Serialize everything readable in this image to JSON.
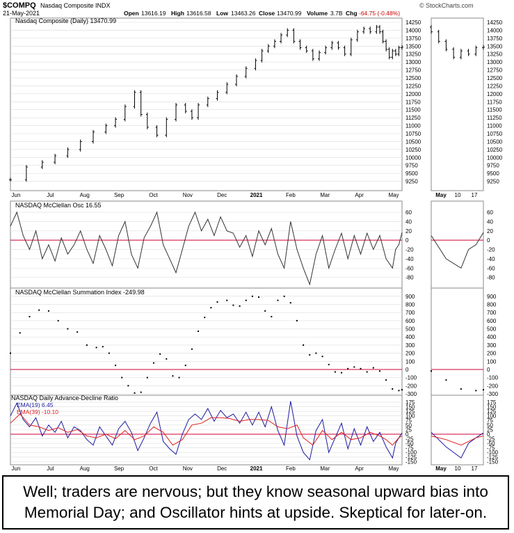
{
  "header": {
    "symbol": "$COMPQ",
    "name": "Nasdaq Composite INDX",
    "date": "21-May-2021",
    "open_label": "Open",
    "open": "13616.19",
    "high_label": "High",
    "high": "13616.58",
    "low_label": "Low",
    "low": "13463.26",
    "close_label": "Close",
    "close": "13470.99",
    "volume_label": "Volume",
    "volume": "3.7B",
    "chg_label": "Chg",
    "chg": "-64.75 (-0.48%)",
    "brand": "© StockCharts.com"
  },
  "colors": {
    "price": "#000000",
    "zero_line": "#cc0033",
    "ema19": "#1a1aa0",
    "ema39": "#e02020",
    "grid": "#dcdcdc",
    "panel_border": "#888888"
  },
  "x_axis": {
    "labels": [
      "Jun",
      "Jul",
      "Aug",
      "Sep",
      "Oct",
      "Nov",
      "Dec",
      "2021",
      "Feb",
      "Mar",
      "Apr",
      "May"
    ],
    "zoom_labels": [
      "May",
      "10",
      "17"
    ]
  },
  "caption": "Well; traders are nervous; but they know seasonal upward bias into Memorial Day; and Oscillator hints at upside. Skeptical for later-on.",
  "chart_data": [
    {
      "type": "ohlc",
      "title": "Nasdaq Composite (Daily) 13470.99",
      "ylim": [
        9000,
        14250
      ],
      "yticks": [
        9250,
        9500,
        9750,
        10000,
        10250,
        10500,
        10750,
        11000,
        11250,
        11500,
        11750,
        12000,
        12250,
        12500,
        12750,
        13000,
        13250,
        13500,
        13750,
        14000,
        14250
      ],
      "points": [
        [
          0,
          9300
        ],
        [
          10,
          9700
        ],
        [
          20,
          9850
        ],
        [
          28,
          10050
        ],
        [
          36,
          10250
        ],
        [
          44,
          10500
        ],
        [
          52,
          10800
        ],
        [
          60,
          11000
        ],
        [
          66,
          11200
        ],
        [
          72,
          11600
        ],
        [
          78,
          12050
        ],
        [
          82,
          11350
        ],
        [
          86,
          10950
        ],
        [
          92,
          10700
        ],
        [
          98,
          11200
        ],
        [
          104,
          11650
        ],
        [
          110,
          11450
        ],
        [
          114,
          11250
        ],
        [
          118,
          11650
        ],
        [
          124,
          11850
        ],
        [
          130,
          12050
        ],
        [
          136,
          12300
        ],
        [
          142,
          12550
        ],
        [
          148,
          12800
        ],
        [
          154,
          13050
        ],
        [
          158,
          13350
        ],
        [
          162,
          13500
        ],
        [
          166,
          13650
        ],
        [
          170,
          13850
        ],
        [
          174,
          14000
        ],
        [
          178,
          13650
        ],
        [
          182,
          13450
        ],
        [
          186,
          13350
        ],
        [
          190,
          13100
        ],
        [
          194,
          13300
        ],
        [
          198,
          13450
        ],
        [
          202,
          13600
        ],
        [
          206,
          13450
        ],
        [
          210,
          13250
        ],
        [
          214,
          13700
        ],
        [
          218,
          13950
        ],
        [
          222,
          14050
        ],
        [
          226,
          13950
        ],
        [
          230,
          14100
        ],
        [
          232,
          13950
        ],
        [
          234,
          13650
        ],
        [
          236,
          13400
        ],
        [
          238,
          13150
        ],
        [
          240,
          13350
        ],
        [
          242,
          13250
        ],
        [
          244,
          13450
        ],
        [
          246,
          13470
        ]
      ]
    },
    {
      "type": "line",
      "title": "NASDAQ McClellan Osc 16.55",
      "ylim": [
        -100,
        75
      ],
      "yticks": [
        -80,
        -60,
        -40,
        -20,
        0,
        20,
        40,
        60
      ],
      "points": [
        [
          0,
          30
        ],
        [
          4,
          60
        ],
        [
          8,
          10
        ],
        [
          12,
          -20
        ],
        [
          16,
          20
        ],
        [
          20,
          -40
        ],
        [
          24,
          -10
        ],
        [
          28,
          -45
        ],
        [
          32,
          5
        ],
        [
          36,
          -30
        ],
        [
          40,
          -10
        ],
        [
          44,
          20
        ],
        [
          48,
          -20
        ],
        [
          52,
          -50
        ],
        [
          56,
          10
        ],
        [
          60,
          -20
        ],
        [
          64,
          -55
        ],
        [
          68,
          10
        ],
        [
          72,
          40
        ],
        [
          76,
          -30
        ],
        [
          80,
          -60
        ],
        [
          84,
          5
        ],
        [
          88,
          30
        ],
        [
          92,
          60
        ],
        [
          96,
          -10
        ],
        [
          100,
          -40
        ],
        [
          104,
          -70
        ],
        [
          108,
          -20
        ],
        [
          112,
          30
        ],
        [
          116,
          60
        ],
        [
          120,
          20
        ],
        [
          124,
          45
        ],
        [
          128,
          10
        ],
        [
          132,
          50
        ],
        [
          136,
          20
        ],
        [
          140,
          15
        ],
        [
          144,
          -15
        ],
        [
          148,
          10
        ],
        [
          152,
          -35
        ],
        [
          156,
          20
        ],
        [
          160,
          -10
        ],
        [
          164,
          25
        ],
        [
          168,
          -30
        ],
        [
          172,
          -60
        ],
        [
          176,
          40
        ],
        [
          180,
          -20
        ],
        [
          184,
          -60
        ],
        [
          188,
          -95
        ],
        [
          192,
          -30
        ],
        [
          196,
          10
        ],
        [
          200,
          -60
        ],
        [
          204,
          -20
        ],
        [
          208,
          15
        ],
        [
          212,
          -40
        ],
        [
          216,
          10
        ],
        [
          220,
          -30
        ],
        [
          224,
          15
        ],
        [
          228,
          -20
        ],
        [
          232,
          10
        ],
        [
          236,
          -40
        ],
        [
          240,
          -60
        ],
        [
          242,
          -20
        ],
        [
          244,
          -10
        ],
        [
          246,
          16.55
        ]
      ]
    },
    {
      "type": "scatter",
      "title": "NASDAQ McClellan Summation Index -249.98",
      "ylim": [
        -300,
        950
      ],
      "yticks": [
        -300,
        -200,
        -100,
        0,
        100,
        200,
        300,
        400,
        500,
        600,
        700,
        800,
        900
      ],
      "points": [
        [
          0,
          200
        ],
        [
          6,
          450
        ],
        [
          12,
          650
        ],
        [
          18,
          730
        ],
        [
          24,
          720
        ],
        [
          30,
          600
        ],
        [
          36,
          500
        ],
        [
          42,
          460
        ],
        [
          48,
          300
        ],
        [
          54,
          270
        ],
        [
          58,
          280
        ],
        [
          62,
          200
        ],
        [
          66,
          50
        ],
        [
          70,
          -100
        ],
        [
          74,
          -200
        ],
        [
          78,
          -290
        ],
        [
          82,
          -280
        ],
        [
          86,
          -100
        ],
        [
          90,
          80
        ],
        [
          94,
          190
        ],
        [
          98,
          130
        ],
        [
          102,
          -80
        ],
        [
          106,
          -100
        ],
        [
          110,
          50
        ],
        [
          114,
          250
        ],
        [
          118,
          470
        ],
        [
          122,
          640
        ],
        [
          126,
          760
        ],
        [
          130,
          830
        ],
        [
          136,
          850
        ],
        [
          140,
          790
        ],
        [
          144,
          780
        ],
        [
          148,
          850
        ],
        [
          152,
          900
        ],
        [
          156,
          890
        ],
        [
          160,
          720
        ],
        [
          164,
          650
        ],
        [
          168,
          850
        ],
        [
          172,
          900
        ],
        [
          176,
          820
        ],
        [
          180,
          600
        ],
        [
          184,
          300
        ],
        [
          188,
          180
        ],
        [
          192,
          200
        ],
        [
          196,
          160
        ],
        [
          200,
          60
        ],
        [
          204,
          -30
        ],
        [
          208,
          -40
        ],
        [
          212,
          10
        ],
        [
          216,
          30
        ],
        [
          220,
          10
        ],
        [
          224,
          -30
        ],
        [
          228,
          20
        ],
        [
          232,
          -20
        ],
        [
          236,
          -130
        ],
        [
          240,
          -240
        ],
        [
          244,
          -260
        ],
        [
          246,
          -249.98
        ]
      ]
    },
    {
      "type": "line",
      "title": "NASDAQ Daily Advance-Decline Ratio",
      "ylim": [
        -160,
        190
      ],
      "yticks": [
        -150,
        -125,
        -100,
        -75,
        -50,
        -25,
        0,
        25,
        50,
        75,
        100,
        125,
        150,
        175
      ],
      "series": [
        {
          "name": "EMA(19) 6.45",
          "points": [
            [
              0,
              100
            ],
            [
              4,
              170
            ],
            [
              8,
              80
            ],
            [
              12,
              40
            ],
            [
              16,
              90
            ],
            [
              20,
              -10
            ],
            [
              24,
              50
            ],
            [
              28,
              10
            ],
            [
              32,
              70
            ],
            [
              36,
              -20
            ],
            [
              40,
              40
            ],
            [
              44,
              20
            ],
            [
              48,
              -30
            ],
            [
              52,
              -60
            ],
            [
              56,
              40
            ],
            [
              60,
              -10
            ],
            [
              64,
              -60
            ],
            [
              68,
              30
            ],
            [
              72,
              70
            ],
            [
              76,
              10
            ],
            [
              80,
              -90
            ],
            [
              84,
              -20
            ],
            [
              88,
              60
            ],
            [
              92,
              120
            ],
            [
              96,
              -40
            ],
            [
              100,
              -80
            ],
            [
              104,
              -110
            ],
            [
              108,
              0
            ],
            [
              112,
              80
            ],
            [
              116,
              110
            ],
            [
              120,
              80
            ],
            [
              124,
              140
            ],
            [
              128,
              70
            ],
            [
              132,
              130
            ],
            [
              136,
              90
            ],
            [
              140,
              110
            ],
            [
              144,
              60
            ],
            [
              148,
              120
            ],
            [
              152,
              50
            ],
            [
              156,
              120
            ],
            [
              160,
              40
            ],
            [
              164,
              150
            ],
            [
              168,
              20
            ],
            [
              172,
              -60
            ],
            [
              176,
              180
            ],
            [
              180,
              -10
            ],
            [
              184,
              -100
            ],
            [
              188,
              -140
            ],
            [
              192,
              20
            ],
            [
              196,
              80
            ],
            [
              200,
              -100
            ],
            [
              204,
              -20
            ],
            [
              208,
              60
            ],
            [
              212,
              -80
            ],
            [
              216,
              30
            ],
            [
              220,
              -60
            ],
            [
              224,
              40
            ],
            [
              228,
              -40
            ],
            [
              232,
              10
            ],
            [
              236,
              -70
            ],
            [
              240,
              -130
            ],
            [
              242,
              -50
            ],
            [
              244,
              -20
            ],
            [
              246,
              6.45
            ]
          ]
        },
        {
          "name": "EMA(39) -10.10",
          "points": [
            [
              0,
              60
            ],
            [
              6,
              110
            ],
            [
              12,
              50
            ],
            [
              18,
              40
            ],
            [
              24,
              20
            ],
            [
              30,
              35
            ],
            [
              36,
              10
            ],
            [
              42,
              25
            ],
            [
              48,
              -10
            ],
            [
              54,
              -20
            ],
            [
              60,
              0
            ],
            [
              66,
              -25
            ],
            [
              72,
              20
            ],
            [
              78,
              -30
            ],
            [
              84,
              -10
            ],
            [
              90,
              40
            ],
            [
              96,
              10
            ],
            [
              102,
              -60
            ],
            [
              108,
              -30
            ],
            [
              114,
              50
            ],
            [
              120,
              60
            ],
            [
              126,
              90
            ],
            [
              132,
              90
            ],
            [
              138,
              85
            ],
            [
              144,
              70
            ],
            [
              150,
              80
            ],
            [
              156,
              80
            ],
            [
              162,
              75
            ],
            [
              168,
              40
            ],
            [
              174,
              30
            ],
            [
              180,
              50
            ],
            [
              184,
              -20
            ],
            [
              190,
              -60
            ],
            [
              196,
              20
            ],
            [
              202,
              -30
            ],
            [
              208,
              10
            ],
            [
              214,
              -30
            ],
            [
              220,
              -20
            ],
            [
              226,
              10
            ],
            [
              232,
              -10
            ],
            [
              236,
              -30
            ],
            [
              240,
              -60
            ],
            [
              244,
              -20
            ],
            [
              246,
              -10.1
            ]
          ]
        }
      ]
    }
  ]
}
